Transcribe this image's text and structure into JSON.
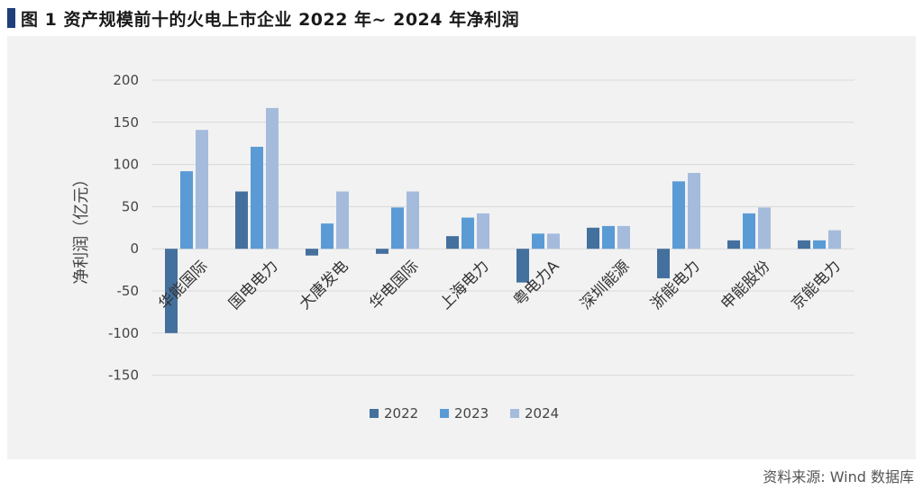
{
  "header": {
    "title": "图 1  资产规模前十的火电上市企业 2022 年~ 2024 年净利润"
  },
  "footer": {
    "source": "资料来源: Wind 数据库"
  },
  "colors": {
    "title_marker": "#1f3e7a",
    "panel_bg": "#f2f2f2",
    "grid": "#d9d9d9"
  },
  "chart_data": {
    "type": "bar",
    "title": "",
    "xlabel": "",
    "ylabel": "净利润（亿元）",
    "ylim": [
      -150,
      200
    ],
    "yticks": [
      200,
      150,
      100,
      50,
      0,
      -50,
      -100,
      -150
    ],
    "grid": true,
    "legend_position": "bottom",
    "categories": [
      "华能国际",
      "国电电力",
      "大唐发电",
      "华电国际",
      "上海电力",
      "粤电力A",
      "深圳能源",
      "浙能电力",
      "申能股份",
      "京能电力"
    ],
    "series": [
      {
        "name": "2022",
        "color": "#44709d",
        "values": [
          -100,
          68,
          -8,
          -6,
          15,
          -40,
          25,
          -35,
          10,
          10
        ]
      },
      {
        "name": "2023",
        "color": "#5b9bd5",
        "values": [
          92,
          121,
          30,
          49,
          37,
          18,
          27,
          80,
          42,
          10
        ]
      },
      {
        "name": "2024",
        "color": "#a5bbdc",
        "values": [
          141,
          167,
          68,
          68,
          42,
          18,
          27,
          90,
          49,
          22
        ]
      }
    ]
  }
}
